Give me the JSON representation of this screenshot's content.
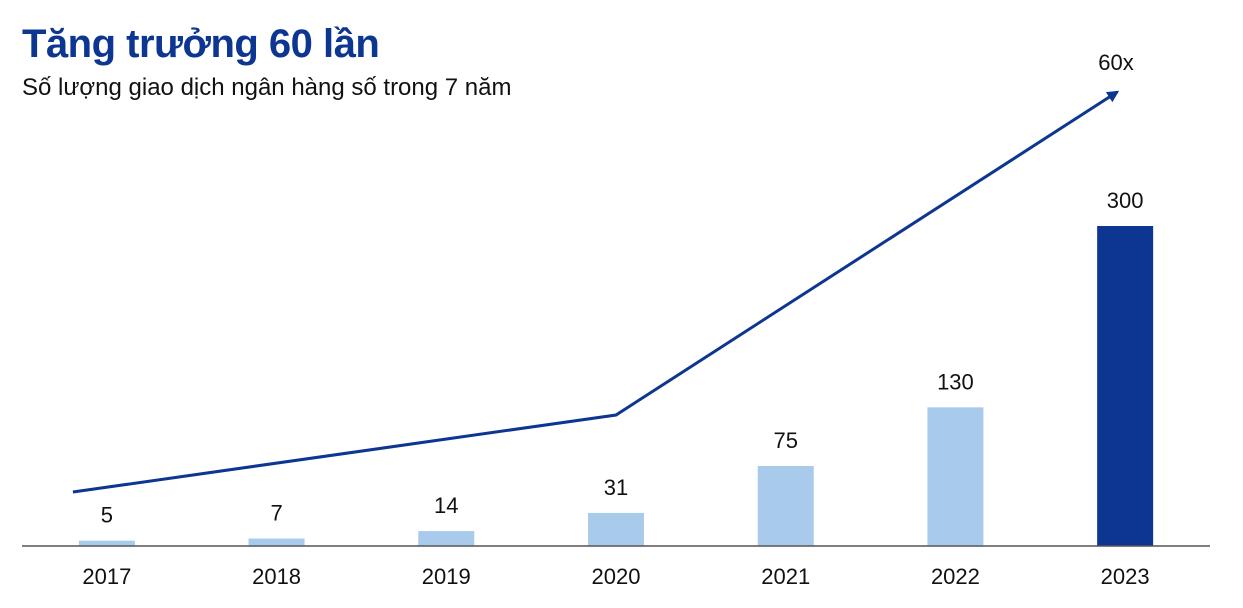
{
  "chart_data": {
    "type": "bar",
    "title": "Tăng trưởng 60 lần",
    "subtitle": "Số lượng giao dịch ngân hàng số trong 7 năm",
    "categories": [
      "2017",
      "2018",
      "2019",
      "2020",
      "2021",
      "2022",
      "2023"
    ],
    "values": [
      5,
      7,
      14,
      31,
      75,
      130,
      300
    ],
    "value_labels": [
      "5",
      "7",
      "14",
      "31",
      "75",
      "130",
      "300"
    ],
    "ylim": [
      0,
      300
    ],
    "grid": false,
    "trend_label": "60x",
    "colors": {
      "bar": "#a8cbec",
      "highlight_bar": "#0d3592",
      "trend": "#0d3592",
      "axis": "#555555",
      "title": "#0d3592"
    }
  }
}
